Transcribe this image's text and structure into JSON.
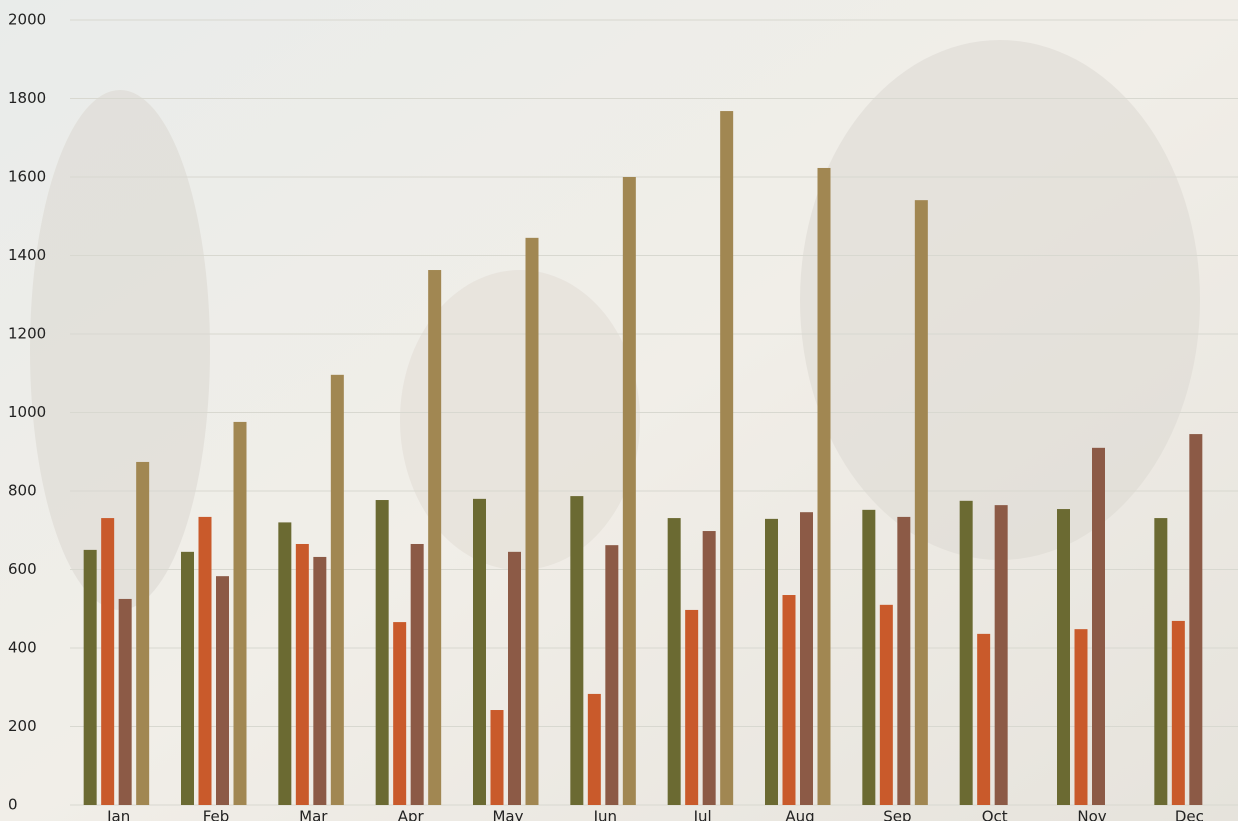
{
  "chart_data": {
    "type": "bar",
    "categories": [
      "Jan",
      "Feb",
      "Mar",
      "Apr",
      "May",
      "Jun",
      "Jul",
      "Aug",
      "Sep",
      "Oct",
      "Nov",
      "Dec"
    ],
    "series": [
      {
        "color": "#6b6a32",
        "values": [
          650,
          645,
          720,
          777,
          780,
          787,
          731,
          729,
          752,
          775,
          754,
          731
        ]
      },
      {
        "color": "#c95a2b",
        "values": [
          731,
          734,
          665,
          466,
          242,
          283,
          497,
          535,
          510,
          436,
          448,
          469
        ]
      },
      {
        "color": "#8c5a46",
        "values": [
          525,
          583,
          632,
          665,
          645,
          662,
          698,
          746,
          734,
          764,
          910,
          945
        ]
      },
      {
        "color": "#a18752",
        "values": [
          874,
          976,
          1096,
          1363,
          1445,
          1600,
          1768,
          1623,
          1541,
          null,
          null,
          null
        ]
      }
    ],
    "ylim": [
      0,
      2000
    ],
    "yticks": [
      0,
      200,
      400,
      600,
      800,
      1000,
      1200,
      1400,
      1600,
      1800,
      2000
    ],
    "grid": true
  }
}
